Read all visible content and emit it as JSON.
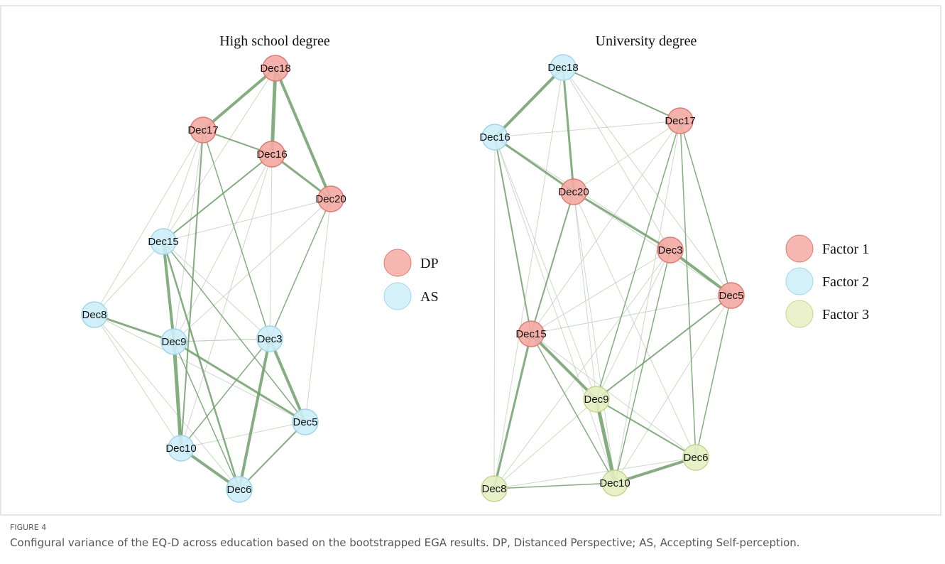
{
  "figure": {
    "label": "FIGURE 4",
    "caption": "Configural variance of the EQ-D across education based on the bootstrapped EGA results. DP, Distanced Perspective; AS, Accepting Self-perception."
  },
  "panels": [
    {
      "title": "High school degree",
      "nodes": [
        "Dec18",
        "Dec17",
        "Dec16",
        "Dec20",
        "Dec15",
        "Dec8",
        "Dec9",
        "Dec3",
        "Dec5",
        "Dec10",
        "Dec6"
      ],
      "legend": [
        {
          "label": "DP",
          "color": "#f4aaa3"
        },
        {
          "label": "AS",
          "color": "#cdeef8"
        }
      ]
    },
    {
      "title": "University degree",
      "nodes": [
        "Dec18",
        "Dec16",
        "Dec17",
        "Dec20",
        "Dec3",
        "Dec5",
        "Dec15",
        "Dec9",
        "Dec6",
        "Dec10",
        "Dec8"
      ],
      "legend": [
        {
          "label": "Factor 1",
          "color": "#f4aaa3"
        },
        {
          "label": "Factor 2",
          "color": "#cdeef8"
        },
        {
          "label": "Factor 3",
          "color": "#e6eec2"
        }
      ]
    }
  ]
}
